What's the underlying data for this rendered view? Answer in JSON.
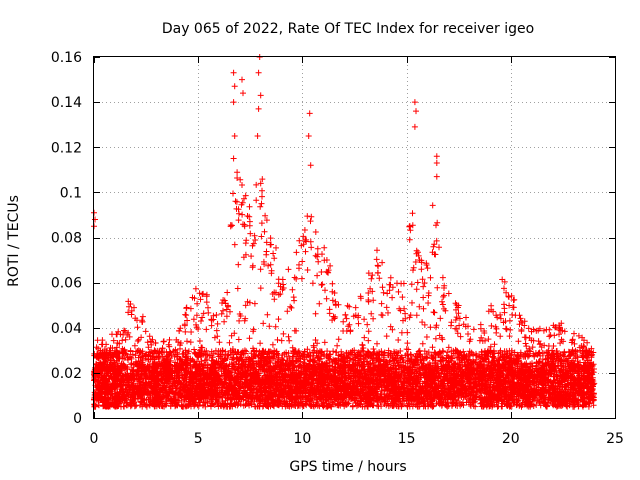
{
  "chart_data": {
    "type": "scatter",
    "title": "Day 065 of 2022, Rate Of TEC Index for receiver igeo",
    "xlabel": "GPS time / hours",
    "ylabel": "ROTI / TECUs",
    "xlim": [
      0,
      25
    ],
    "ylim": [
      0,
      0.16
    ],
    "x_ticks": [
      0,
      5,
      10,
      15,
      20,
      25
    ],
    "x_tick_labels": [
      "0",
      "5",
      "10",
      "15",
      "20",
      "25"
    ],
    "y_ticks": [
      0,
      0.02,
      0.04,
      0.06,
      0.08,
      0.1,
      0.12,
      0.14,
      0.16
    ],
    "y_tick_labels": [
      "0",
      "0.02",
      "0.04",
      "0.06",
      "0.08",
      "0.1",
      "0.12",
      "0.14",
      "0.16"
    ],
    "grid": true,
    "marker": "+",
    "color": "#ff0000",
    "x_data_range": [
      0,
      24
    ],
    "typical_baseline_range": [
      0.005,
      0.03
    ],
    "envelope": [
      {
        "x": 0.0,
        "y": 0.035
      },
      {
        "x": 0.5,
        "y": 0.035
      },
      {
        "x": 1.0,
        "y": 0.038
      },
      {
        "x": 1.5,
        "y": 0.04
      },
      {
        "x": 1.8,
        "y": 0.052
      },
      {
        "x": 2.2,
        "y": 0.045
      },
      {
        "x": 2.8,
        "y": 0.035
      },
      {
        "x": 3.5,
        "y": 0.035
      },
      {
        "x": 4.0,
        "y": 0.04
      },
      {
        "x": 4.5,
        "y": 0.05
      },
      {
        "x": 4.9,
        "y": 0.058
      },
      {
        "x": 5.3,
        "y": 0.055
      },
      {
        "x": 5.8,
        "y": 0.045
      },
      {
        "x": 6.3,
        "y": 0.055
      },
      {
        "x": 6.7,
        "y": 0.1
      },
      {
        "x": 7.0,
        "y": 0.11
      },
      {
        "x": 7.3,
        "y": 0.1
      },
      {
        "x": 7.6,
        "y": 0.09
      },
      {
        "x": 7.9,
        "y": 0.12
      },
      {
        "x": 8.2,
        "y": 0.09
      },
      {
        "x": 8.6,
        "y": 0.085
      },
      {
        "x": 9.0,
        "y": 0.07
      },
      {
        "x": 9.5,
        "y": 0.065
      },
      {
        "x": 10.0,
        "y": 0.085
      },
      {
        "x": 10.3,
        "y": 0.1
      },
      {
        "x": 10.8,
        "y": 0.075
      },
      {
        "x": 11.2,
        "y": 0.08
      },
      {
        "x": 11.6,
        "y": 0.06
      },
      {
        "x": 12.2,
        "y": 0.05
      },
      {
        "x": 12.7,
        "y": 0.055
      },
      {
        "x": 13.2,
        "y": 0.065
      },
      {
        "x": 13.7,
        "y": 0.08
      },
      {
        "x": 14.2,
        "y": 0.065
      },
      {
        "x": 14.7,
        "y": 0.06
      },
      {
        "x": 15.3,
        "y": 0.1
      },
      {
        "x": 15.6,
        "y": 0.075
      },
      {
        "x": 16.0,
        "y": 0.07
      },
      {
        "x": 16.4,
        "y": 0.095
      },
      {
        "x": 16.9,
        "y": 0.06
      },
      {
        "x": 17.5,
        "y": 0.05
      },
      {
        "x": 18.0,
        "y": 0.045
      },
      {
        "x": 18.6,
        "y": 0.045
      },
      {
        "x": 19.2,
        "y": 0.05
      },
      {
        "x": 19.6,
        "y": 0.062
      },
      {
        "x": 20.0,
        "y": 0.055
      },
      {
        "x": 20.5,
        "y": 0.045
      },
      {
        "x": 21.0,
        "y": 0.04
      },
      {
        "x": 21.5,
        "y": 0.04
      },
      {
        "x": 22.0,
        "y": 0.042
      },
      {
        "x": 22.4,
        "y": 0.043
      },
      {
        "x": 23.0,
        "y": 0.04
      },
      {
        "x": 23.5,
        "y": 0.035
      },
      {
        "x": 24.0,
        "y": 0.032
      }
    ],
    "outliers": [
      {
        "x": 0.0,
        "y": 0.091
      },
      {
        "x": 0.05,
        "y": 0.088
      },
      {
        "x": 0.0,
        "y": 0.085
      },
      {
        "x": 6.7,
        "y": 0.153
      },
      {
        "x": 6.75,
        "y": 0.147
      },
      {
        "x": 6.7,
        "y": 0.14
      },
      {
        "x": 6.75,
        "y": 0.125
      },
      {
        "x": 6.7,
        "y": 0.115
      },
      {
        "x": 7.1,
        "y": 0.15
      },
      {
        "x": 7.15,
        "y": 0.144
      },
      {
        "x": 7.95,
        "y": 0.16
      },
      {
        "x": 7.9,
        "y": 0.153
      },
      {
        "x": 8.0,
        "y": 0.143
      },
      {
        "x": 7.9,
        "y": 0.137
      },
      {
        "x": 7.85,
        "y": 0.125
      },
      {
        "x": 10.35,
        "y": 0.135
      },
      {
        "x": 10.3,
        "y": 0.125
      },
      {
        "x": 10.4,
        "y": 0.112
      },
      {
        "x": 15.4,
        "y": 0.14
      },
      {
        "x": 15.45,
        "y": 0.136
      },
      {
        "x": 15.4,
        "y": 0.129
      },
      {
        "x": 16.45,
        "y": 0.116
      },
      {
        "x": 16.45,
        "y": 0.113
      },
      {
        "x": 16.45,
        "y": 0.107
      }
    ]
  }
}
